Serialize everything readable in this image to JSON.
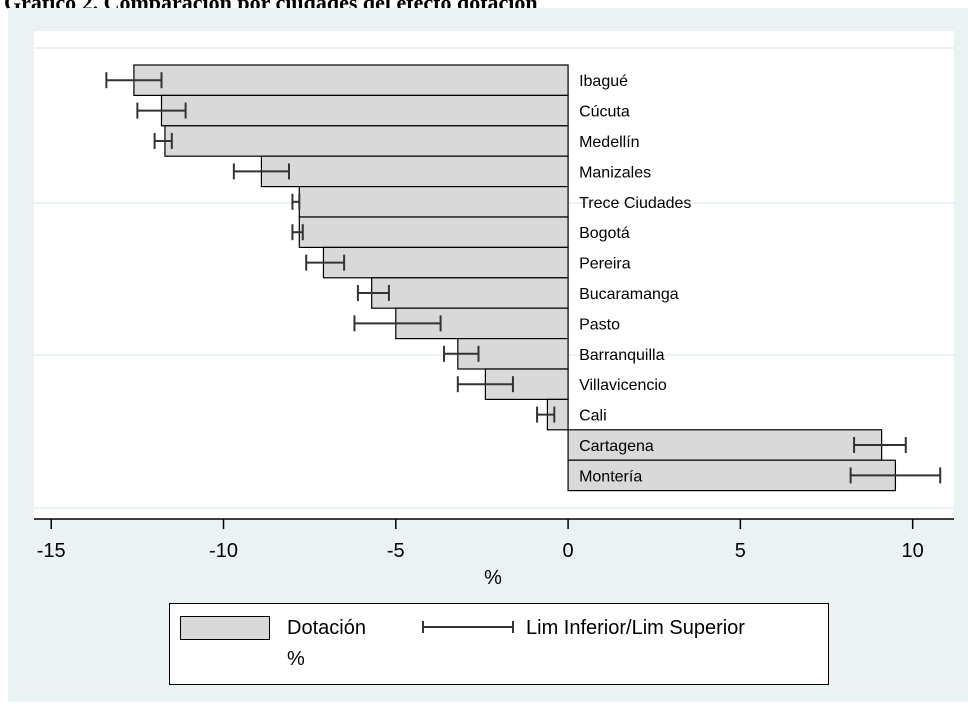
{
  "page": {
    "title": "Gráfico 2. Comparación por ciudades del efecto dotación"
  },
  "chart_data": {
    "type": "bar",
    "orientation": "horizontal",
    "categories": [
      "Ibagué",
      "Cúcuta",
      "Medellín",
      "Manizales",
      "Trece Ciudades",
      "Bogotá",
      "Pereira",
      "Bucaramanga",
      "Pasto",
      "Barranquilla",
      "Villavicencio",
      "Cali",
      "Cartagena",
      "Montería"
    ],
    "series": [
      {
        "name": "Dotación %",
        "values": [
          -12.6,
          -11.8,
          -11.7,
          -8.9,
          -7.8,
          -7.8,
          -7.1,
          -5.7,
          -5.0,
          -3.2,
          -2.4,
          -0.6,
          9.1,
          9.5
        ]
      }
    ],
    "error_bars": {
      "name": "Lim Inferior/Lim Superior",
      "low": [
        -13.4,
        -12.5,
        -12.0,
        -9.7,
        -8.0,
        -8.0,
        -7.6,
        -6.1,
        -6.2,
        -3.6,
        -3.2,
        -0.9,
        8.3,
        8.2
      ],
      "high": [
        -11.8,
        -11.1,
        -11.5,
        -8.1,
        -7.8,
        -7.7,
        -6.5,
        -5.2,
        -3.7,
        -2.6,
        -1.6,
        -0.4,
        9.8,
        10.8
      ]
    },
    "xlabel": "%",
    "xlim": [
      -15.5,
      11.2
    ],
    "xticks": [
      "-15",
      "-10",
      "-5",
      "0",
      "5",
      "10"
    ],
    "grid": true,
    "legend": {
      "position": "bottom",
      "bar_label_line1": "Dotación",
      "bar_label_line2": "%",
      "errbar_label": "Lim Inferior/Lim Superior"
    },
    "colors": {
      "bar_fill": "#d9d9d9",
      "bar_stroke": "#000000",
      "errbar": "#333333",
      "plot_bg": "#ffffff",
      "outer_bg": "#eaf2f3",
      "grid": "#eaf2f3"
    }
  }
}
